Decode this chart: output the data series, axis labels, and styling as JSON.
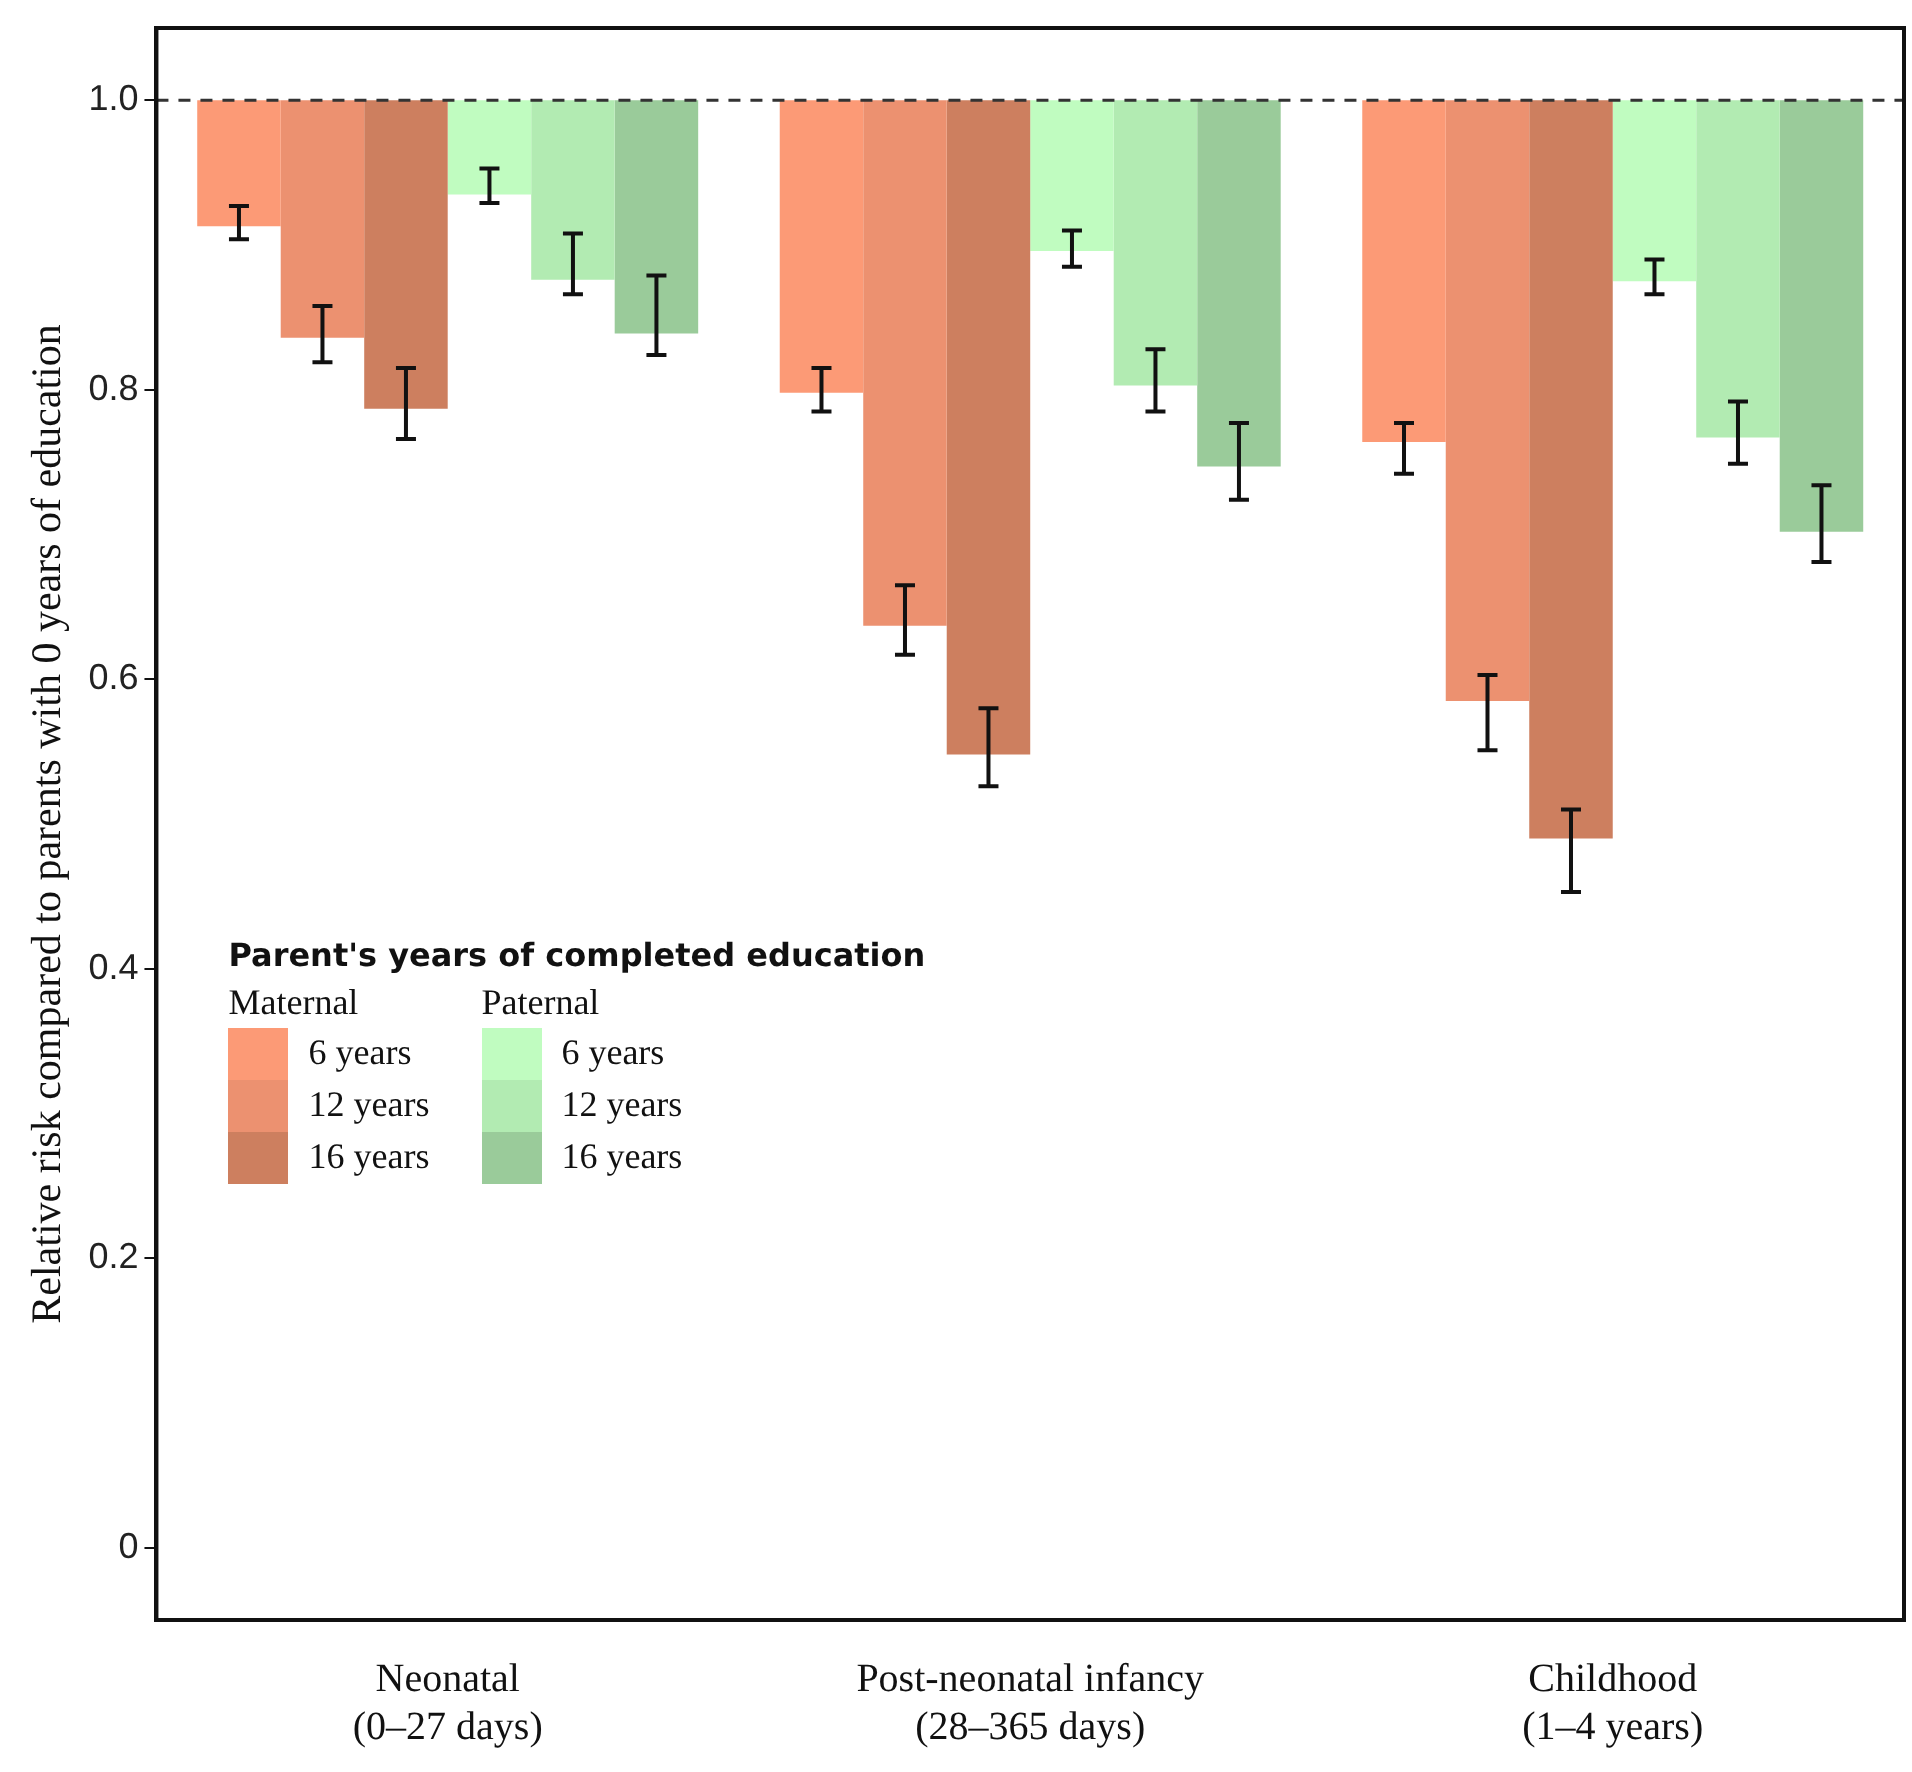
{
  "chart_data": {
    "type": "bar",
    "ylabel": "Relative risk compared to parents with 0 years of education",
    "legend_title": "Parent's years of completed education",
    "categories": [
      "Neonatal\n(0–27 days)",
      "Post-neonatal infancy\n(28–365 days)",
      "Childhood\n(1–4 years)"
    ],
    "series": [
      {
        "name": "6 years",
        "color": "#fc9a76",
        "base": [
          1,
          1,
          1
        ],
        "values": [
          -0.087,
          -0.202,
          -0.236
        ],
        "errors": [
          [
            0.904,
            0.927
          ],
          [
            0.785,
            0.815
          ],
          [
            0.742,
            0.777
          ]
        ]
      },
      {
        "name": "12 years",
        "color": "#ec9170",
        "base": [
          1,
          1,
          1
        ],
        "values": [
          -0.164,
          -0.363,
          -0.415
        ],
        "errors": [
          [
            0.819,
            0.858
          ],
          [
            0.617,
            0.665
          ],
          [
            0.551,
            0.603
          ]
        ]
      },
      {
        "name": "16 years",
        "color": "#cd7f5f",
        "base": [
          1,
          1,
          1
        ],
        "values": [
          -0.213,
          -0.452,
          -0.51
        ],
        "errors": [
          [
            0.766,
            0.815
          ],
          [
            0.526,
            0.58
          ],
          [
            0.453,
            0.51
          ]
        ]
      },
      {
        "name": "6 years",
        "color": "#c0fcc0",
        "base": [
          1,
          1,
          1
        ],
        "values": [
          -0.065,
          -0.104,
          -0.125
        ],
        "errors": [
          [
            0.929,
            0.953
          ],
          [
            0.885,
            0.91
          ],
          [
            0.866,
            0.89
          ]
        ]
      },
      {
        "name": "12 years",
        "color": "#b2ebb2",
        "base": [
          1,
          1,
          1
        ],
        "values": [
          -0.124,
          -0.197,
          -0.233
        ],
        "errors": [
          [
            0.866,
            0.908
          ],
          [
            0.785,
            0.828
          ],
          [
            0.749,
            0.792
          ]
        ]
      },
      {
        "name": "16 years",
        "color": "#9acb9a",
        "base": [
          1,
          1,
          1
        ],
        "values": [
          -0.161,
          -0.253,
          -0.298
        ],
        "errors": [
          [
            0.824,
            0.879
          ],
          [
            0.724,
            0.777
          ],
          [
            0.681,
            0.734
          ]
        ]
      }
    ],
    "ylim": [
      -0.05,
      1.05
    ],
    "yticks": [
      0,
      0.2,
      0.4,
      0.6,
      0.8,
      {
        "value": 1,
        "label": "1.0"
      }
    ],
    "ref_lines": [
      {
        "axis": "y",
        "value": 1,
        "line_style": "dashed",
        "color": "#333333"
      }
    ],
    "annotations": [
      "Maternal",
      "Paternal"
    ],
    "grid": false,
    "legend": "bottom left"
  }
}
